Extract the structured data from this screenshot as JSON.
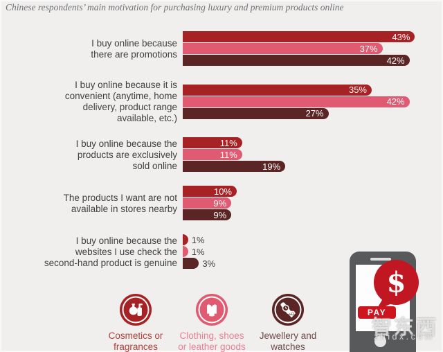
{
  "title": "Chinese respondents’ main motivation for purchasing luxury and premium products online",
  "colors": {
    "background": "#F0EFEE",
    "label_text": "#3F4042",
    "title_text": "#6F7174",
    "bar_red": "#A62224",
    "bar_pink": "#E05A71",
    "bar_maroon": "#5A2524",
    "accent_bright_red": "#C01722"
  },
  "chart_data": {
    "type": "bar",
    "orientation": "horizontal",
    "unit": "%",
    "xlim": [
      0,
      45
    ],
    "grid": false,
    "legend_position": "bottom",
    "title": "Chinese respondents’ main motivation for purchasing luxury and premium products online",
    "categories": [
      "I buy online because there are promotions",
      "I buy online because it is convenient (anytime, home delivery, product range available, etc.)",
      "I buy online because the products are exclusively sold online",
      "The products I want are not available in stores nearby",
      "I buy online because the websites I use check the second-hand product is genuine"
    ],
    "categories_wrapped": [
      "I buy online because\nthere are promotions",
      "I buy online because it is\nconvenient (anytime, home\ndelivery, product range\navailable, etc.)",
      "I buy online because the\nproducts are exclusively\nsold online",
      "The products I want are not\navailable in stores nearby",
      "I buy online because the\nwebsites I use check the\nsecond-hand product is genuine"
    ],
    "series": [
      {
        "name": "Cosmetics or fragrances",
        "color": "#A62224",
        "values": [
          43,
          35,
          11,
          10,
          1
        ]
      },
      {
        "name": "Clothing, shoes or leather goods",
        "color": "#E05A71",
        "values": [
          37,
          42,
          11,
          9,
          1
        ]
      },
      {
        "name": "Jewellery and watches",
        "color": "#5A2524",
        "values": [
          42,
          27,
          19,
          9,
          3
        ]
      }
    ],
    "value_suffix": "%"
  },
  "legend": {
    "items": [
      {
        "label": "Cosmetics or\nfragrances",
        "circle_color": "#A62224",
        "text_color": "#B23E36",
        "icon": "perfume-icon"
      },
      {
        "label": "Clothing, shoes\nor leather goods",
        "circle_color": "#E05A71",
        "text_color": "#EA7E93",
        "icon": "sweater-icon"
      },
      {
        "label": "Jewellery and\nwatches",
        "circle_color": "#5A2524",
        "text_color": "#6D4A47",
        "icon": "watch-diamond-icon"
      }
    ]
  },
  "phone_graphic": {
    "currency_symbol": "$",
    "pay_label": "PAY"
  },
  "watermark": {
    "cn": "智东西",
    "en": "zhidx.com"
  }
}
